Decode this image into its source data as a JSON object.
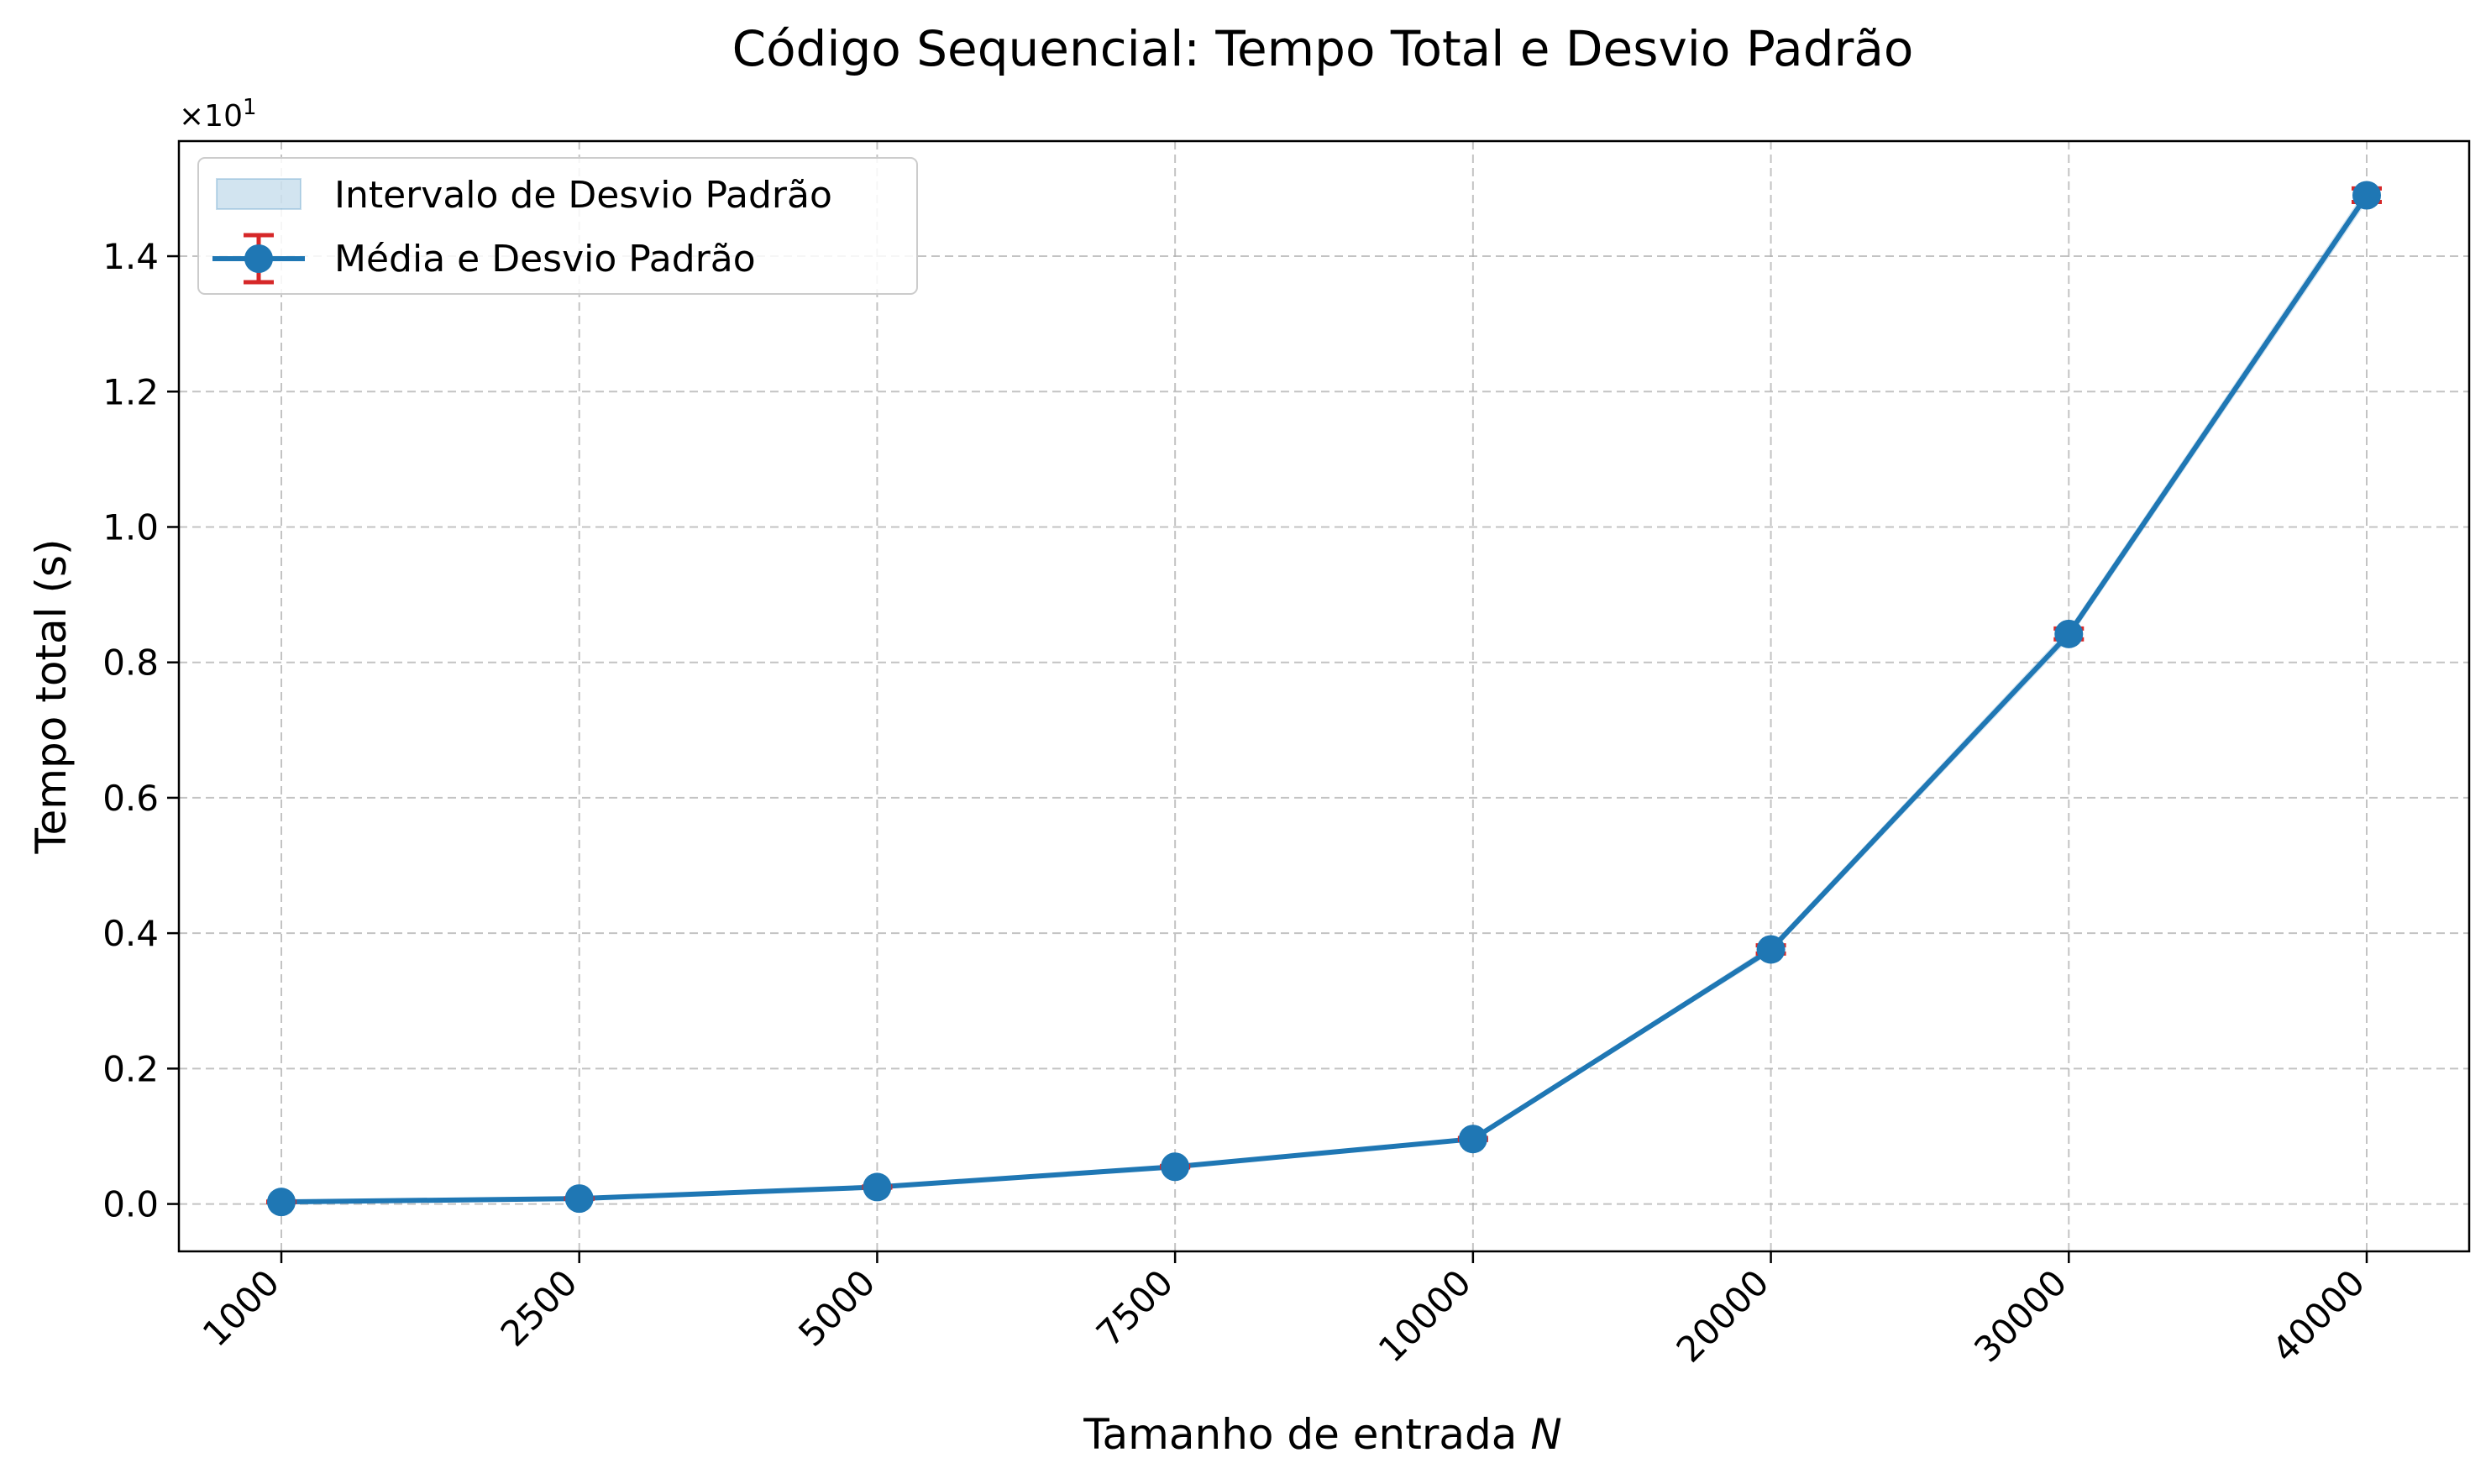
{
  "chart_data": {
    "type": "line",
    "title": "Código Sequencial: Tempo Total e Desvio Padrão",
    "xlabel": "Tamanho de entrada N",
    "xlabel_prefix": "Tamanho de entrada ",
    "xlabel_var": "N",
    "ylabel": "Tempo total (s)",
    "y_offset_label": "×10¹",
    "y_offset_base": "×10",
    "y_offset_exp": "1",
    "x_scale": "categorical (evenly spaced)",
    "categories": [
      "1000",
      "2500",
      "5000",
      "7500",
      "10000",
      "20000",
      "30000",
      "40000"
    ],
    "yticks": [
      "0.0",
      "0.2",
      "0.4",
      "0.6",
      "0.8",
      "1.0",
      "1.2",
      "1.4"
    ],
    "ylim": [
      -0.07,
      1.57
    ],
    "grid": true,
    "legend_position": "top-left",
    "series": [
      {
        "name": "Média e Desvio Padrão",
        "values": [
          0.003,
          0.008,
          0.025,
          0.055,
          0.096,
          0.376,
          0.842,
          1.49
        ],
        "std": [
          0.0005,
          0.0005,
          0.0008,
          0.001,
          0.0015,
          0.006,
          0.008,
          0.01
        ],
        "color": "#1f77b4",
        "errorbar_color": "#d62728"
      }
    ],
    "band": {
      "name": "Intervalo de Desvio Padrão",
      "color": "#1f77b4",
      "alpha": 0.2
    }
  }
}
